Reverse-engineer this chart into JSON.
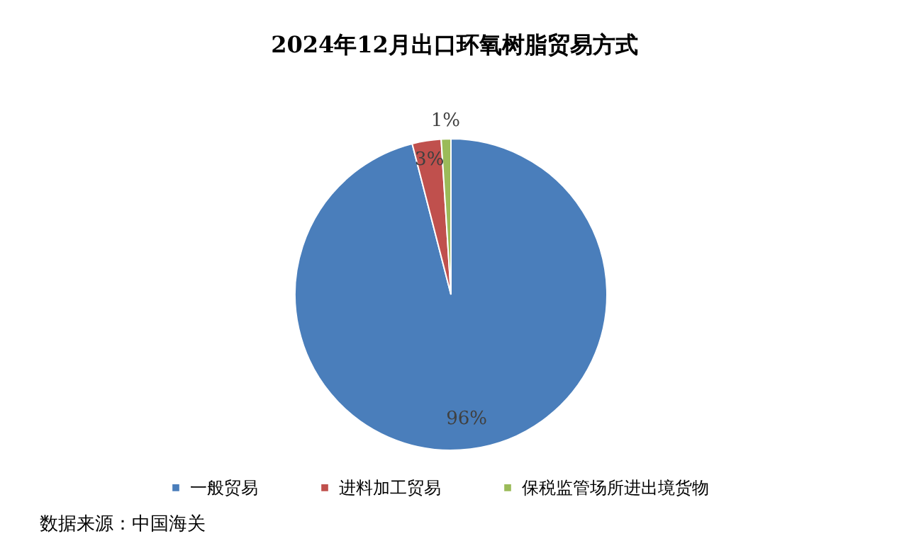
{
  "chart_data": {
    "type": "pie",
    "title": "2024年12月出口环氧树脂贸易方式",
    "categories": [
      "一般贸易",
      "进料加工贸易",
      "保税监管场所进出境货物"
    ],
    "values": [
      96,
      3,
      1
    ],
    "colors": [
      "#4a7ebb",
      "#c0504d",
      "#9bbb59"
    ],
    "value_labels": [
      "96%",
      "3%",
      "1%"
    ],
    "legend": "bottom",
    "annotations": [
      "数据来源：中国海关"
    ]
  }
}
